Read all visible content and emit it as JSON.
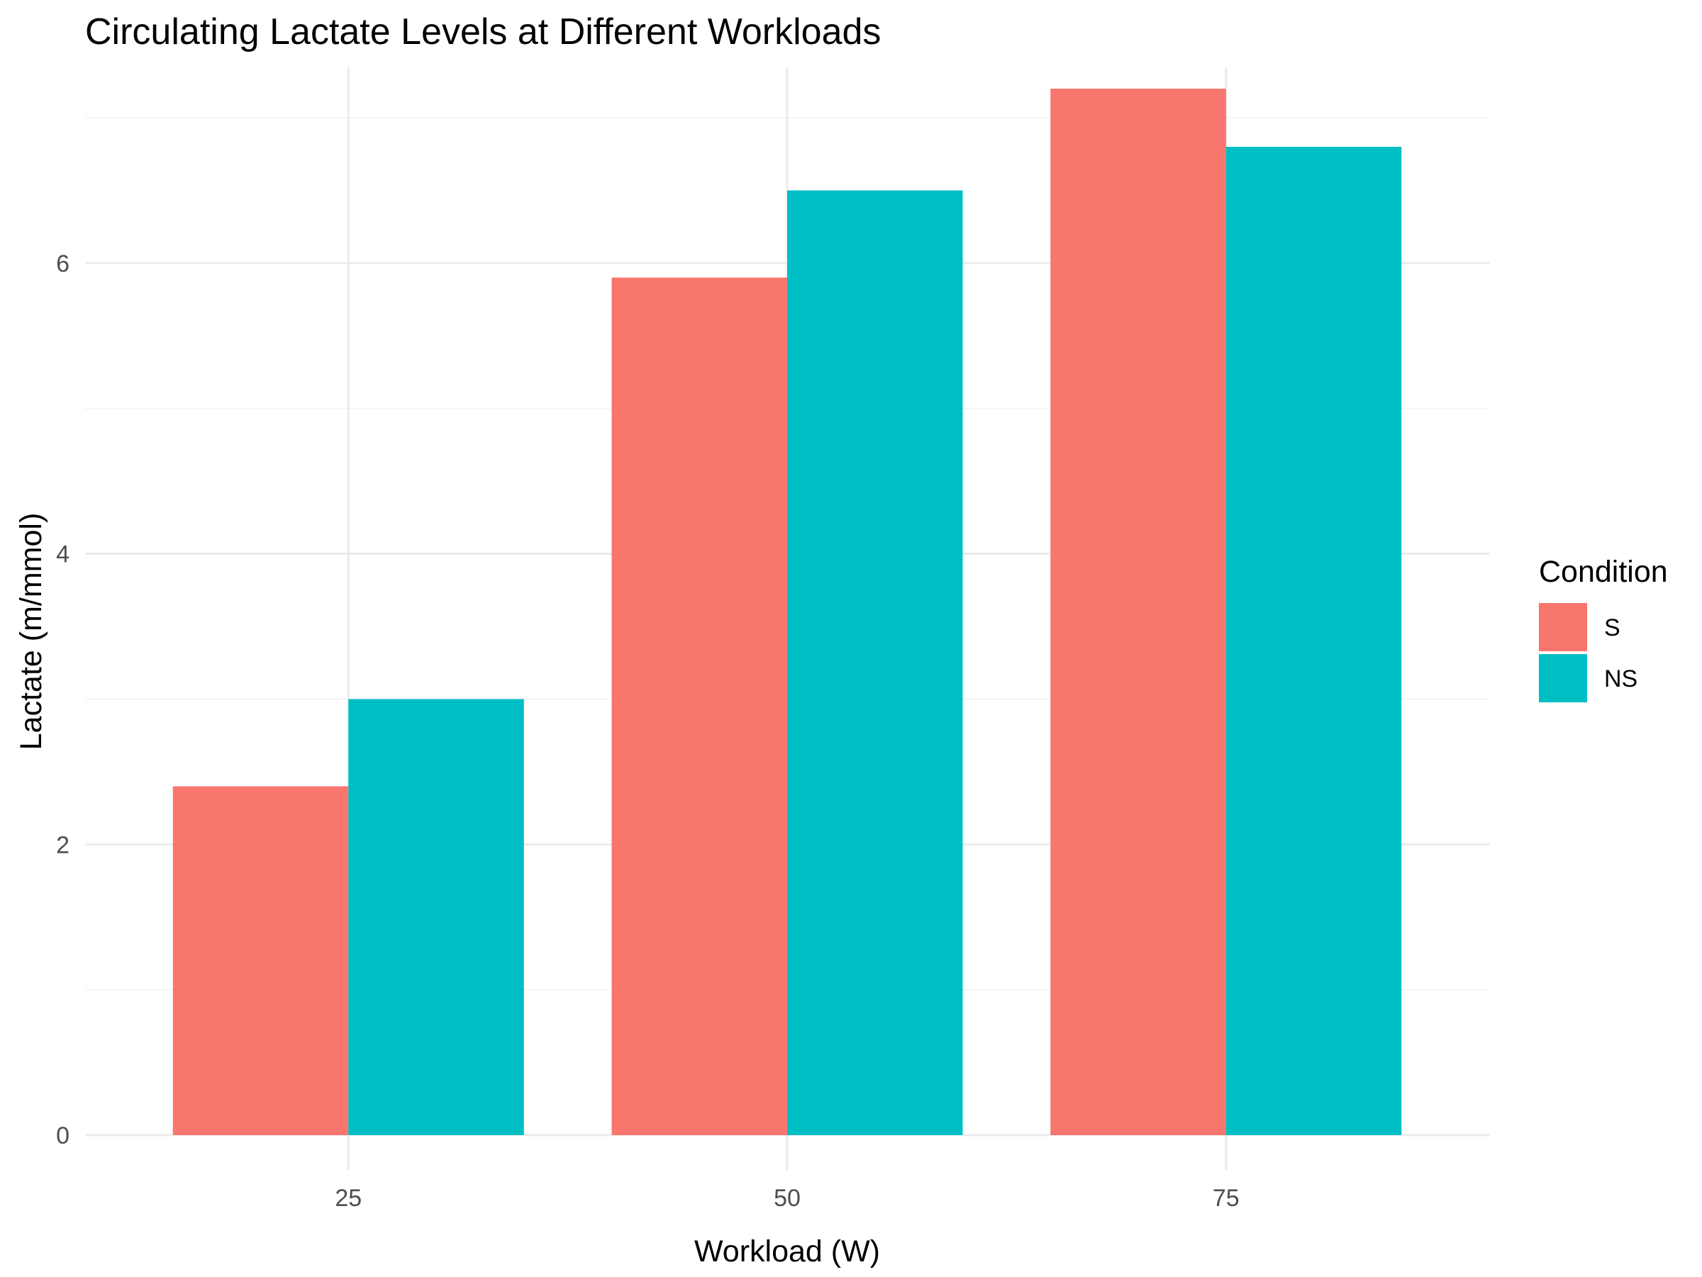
{
  "chart_data": {
    "type": "bar",
    "title": "Circulating Lactate Levels at Different Workloads",
    "xlabel": "Workload (W)",
    "ylabel": "Lactate (m/mmol)",
    "x_values": [
      25,
      50,
      75
    ],
    "x_ticks": [
      "25",
      "50",
      "75"
    ],
    "xlim": [
      10,
      90
    ],
    "y_ticks": [
      "0",
      "2",
      "4",
      "6"
    ],
    "ylim": [
      0,
      7.2
    ],
    "grid": true,
    "legend": {
      "title": "Condition",
      "placement": "right"
    },
    "series": [
      {
        "name": "S",
        "color": "#F8766D",
        "values": [
          2.4,
          5.9,
          7.2
        ]
      },
      {
        "name": "NS",
        "color": "#00BFC4",
        "values": [
          3.0,
          6.5,
          6.8
        ]
      }
    ]
  }
}
